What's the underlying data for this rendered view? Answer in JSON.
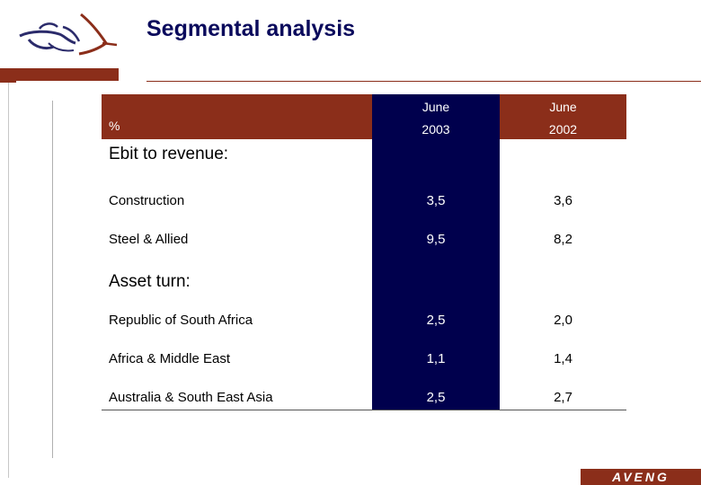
{
  "title": "Segmental analysis",
  "brand": "AVENG",
  "colors": {
    "accent": "#8b2e1a",
    "navy": "#00004d",
    "title": "#0a0a5c"
  },
  "table": {
    "unit_label": "%",
    "columns": [
      {
        "month": "June",
        "year": "2003"
      },
      {
        "month": "June",
        "year": "2002"
      }
    ],
    "sections": [
      {
        "heading": "Ebit to revenue:",
        "rows": [
          {
            "label": "Construction",
            "values": [
              "3,5",
              "3,6"
            ]
          },
          {
            "label": "Steel & Allied",
            "values": [
              "9,5",
              "8,2"
            ]
          }
        ]
      },
      {
        "heading": "Asset turn:",
        "rows": [
          {
            "label": "Republic of South Africa",
            "values": [
              "2,5",
              "2,0"
            ]
          },
          {
            "label": "Africa & Middle East",
            "values": [
              "1,1",
              "1,4"
            ]
          },
          {
            "label": "Australia & South East Asia",
            "values": [
              "2,5",
              "2,7"
            ]
          }
        ]
      }
    ]
  }
}
